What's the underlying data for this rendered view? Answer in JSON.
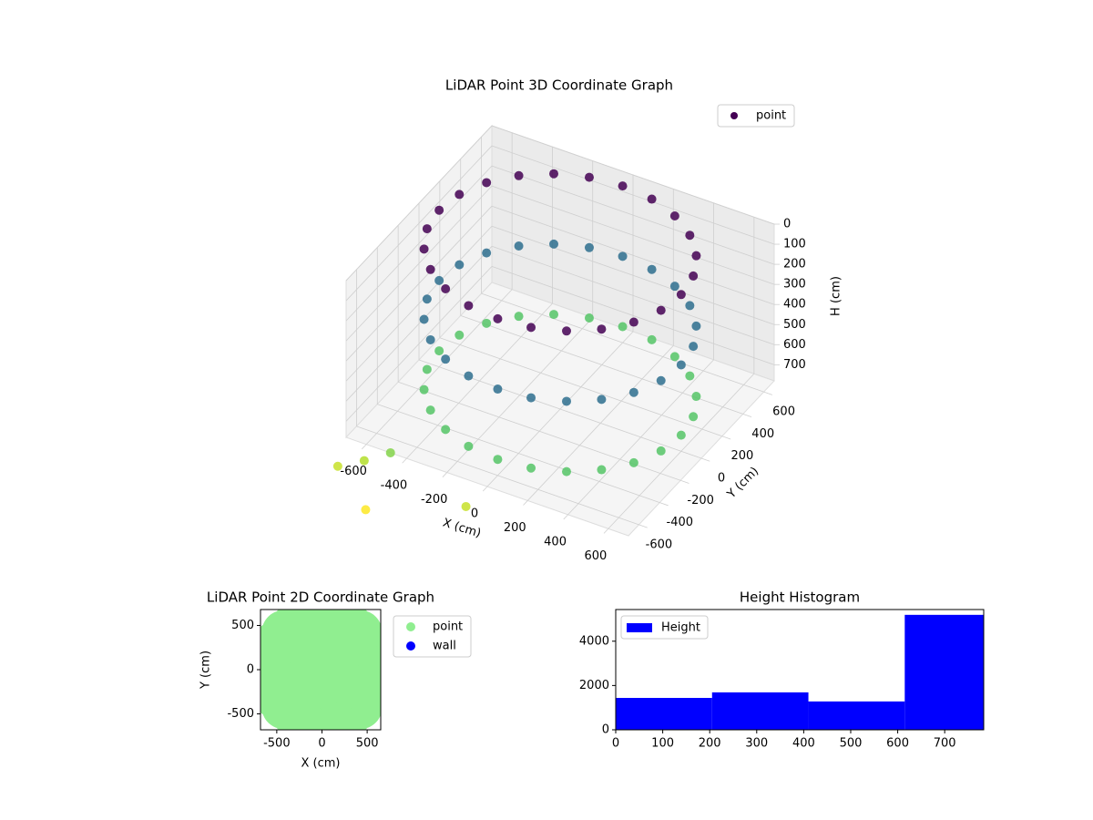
{
  "chart_data": [
    {
      "type": "scatter3d",
      "title": "LiDAR Point 3D Coordinate Graph",
      "xlabel": "X (cm)",
      "ylabel": "Y (cm)",
      "zlabel": "H (cm)",
      "colormap": "viridis",
      "legend": "upper right",
      "z_inverted": true,
      "xlim": [
        -700,
        700
      ],
      "ylim": [
        -700,
        700
      ],
      "zlim": [
        0,
        780
      ],
      "xticks": [
        -600,
        -400,
        -200,
        0,
        200,
        400,
        600
      ],
      "yticks": [
        -600,
        -400,
        -200,
        0,
        200,
        400,
        600
      ],
      "zticks": [
        0,
        100,
        200,
        300,
        400,
        500,
        600,
        700
      ],
      "series": [
        {
          "name": "point",
          "color": "#440154",
          "x": [
            600,
            580,
            520,
            424,
            300,
            155,
            0,
            -155,
            -300,
            -424,
            -520,
            -580,
            -600,
            -580,
            -520,
            -424,
            -300,
            -155,
            0,
            155,
            300,
            424,
            520,
            580,
            600,
            580,
            520,
            424,
            300,
            155,
            0,
            -155,
            -300,
            -424,
            -520,
            -580,
            -600,
            -580,
            -520,
            -424,
            -300,
            -155,
            0,
            155,
            300,
            424,
            520,
            580,
            600,
            580,
            520,
            424,
            300,
            155,
            0,
            -155,
            -300,
            -424,
            -520,
            -580,
            -600,
            -580,
            -520,
            -424,
            -300,
            -155,
            0,
            155,
            300,
            424,
            520,
            580,
            -700,
            -600,
            -480,
            -80,
            -500
          ],
          "y": [
            0,
            155,
            300,
            424,
            520,
            580,
            600,
            580,
            520,
            424,
            300,
            155,
            0,
            -155,
            -300,
            -424,
            -520,
            -580,
            -600,
            -580,
            -520,
            -424,
            -300,
            -155,
            0,
            155,
            300,
            424,
            520,
            580,
            600,
            580,
            520,
            424,
            300,
            155,
            0,
            -155,
            -300,
            -424,
            -520,
            -580,
            -600,
            -580,
            -520,
            -424,
            -300,
            -155,
            0,
            155,
            300,
            424,
            520,
            580,
            600,
            580,
            520,
            424,
            300,
            155,
            0,
            -155,
            -300,
            -424,
            -520,
            -580,
            -600,
            -580,
            -520,
            -424,
            -300,
            -155,
            -780,
            -720,
            -700,
            -750,
            -900
          ],
          "z": [
            0,
            0,
            0,
            0,
            0,
            0,
            0,
            0,
            0,
            0,
            0,
            0,
            0,
            0,
            0,
            0,
            0,
            0,
            0,
            0,
            0,
            0,
            0,
            0,
            350,
            350,
            350,
            350,
            350,
            350,
            350,
            350,
            350,
            350,
            350,
            350,
            350,
            350,
            350,
            350,
            350,
            350,
            350,
            350,
            350,
            350,
            350,
            350,
            700,
            700,
            700,
            700,
            700,
            700,
            700,
            700,
            700,
            700,
            700,
            700,
            700,
            700,
            700,
            700,
            700,
            700,
            700,
            700,
            700,
            700,
            700,
            700,
            880,
            850,
            780,
            880,
            960
          ]
        }
      ]
    },
    {
      "type": "scatter",
      "title": "LiDAR Point 2D Coordinate Graph",
      "xlabel": "X (cm)",
      "ylabel": "Y (cm)",
      "xlim": [
        -680,
        650
      ],
      "ylim": [
        -680,
        680
      ],
      "xticks": [
        -500,
        0,
        500
      ],
      "yticks": [
        -500,
        0,
        500
      ],
      "legend": "outside right",
      "series": [
        {
          "name": "point",
          "color": "#90ee90",
          "x": [
            600,
            580,
            520,
            424,
            300,
            155,
            0,
            -155,
            -300,
            -424,
            -520,
            -580,
            -600,
            -580,
            -520,
            -424,
            -300,
            -155,
            0,
            155,
            300,
            424,
            520,
            580,
            300,
            260,
            150,
            0,
            -150,
            -260,
            -300,
            -260,
            -150,
            0,
            150,
            260,
            0
          ],
          "y": [
            0,
            155,
            300,
            424,
            520,
            580,
            600,
            580,
            520,
            424,
            300,
            155,
            0,
            -155,
            -300,
            -424,
            -520,
            -580,
            -600,
            -580,
            -520,
            -424,
            -300,
            -155,
            0,
            150,
            260,
            300,
            260,
            150,
            0,
            -150,
            -260,
            -300,
            -260,
            -150,
            0
          ]
        },
        {
          "name": "wall",
          "color": "#0000ff",
          "x": [],
          "y": []
        }
      ]
    },
    {
      "type": "histogram",
      "title": "Height Histogram",
      "name": "Height",
      "color": "#0000ff",
      "legend": "upper left",
      "bins": [
        0,
        205,
        410,
        615,
        783
      ],
      "values": [
        1440,
        1690,
        1280,
        5190
      ],
      "xlim": [
        0,
        783
      ],
      "ylim": [
        0,
        5430
      ],
      "xticks": [
        0,
        100,
        200,
        300,
        400,
        500,
        600,
        700
      ],
      "yticks": [
        0,
        2000,
        4000
      ]
    }
  ]
}
